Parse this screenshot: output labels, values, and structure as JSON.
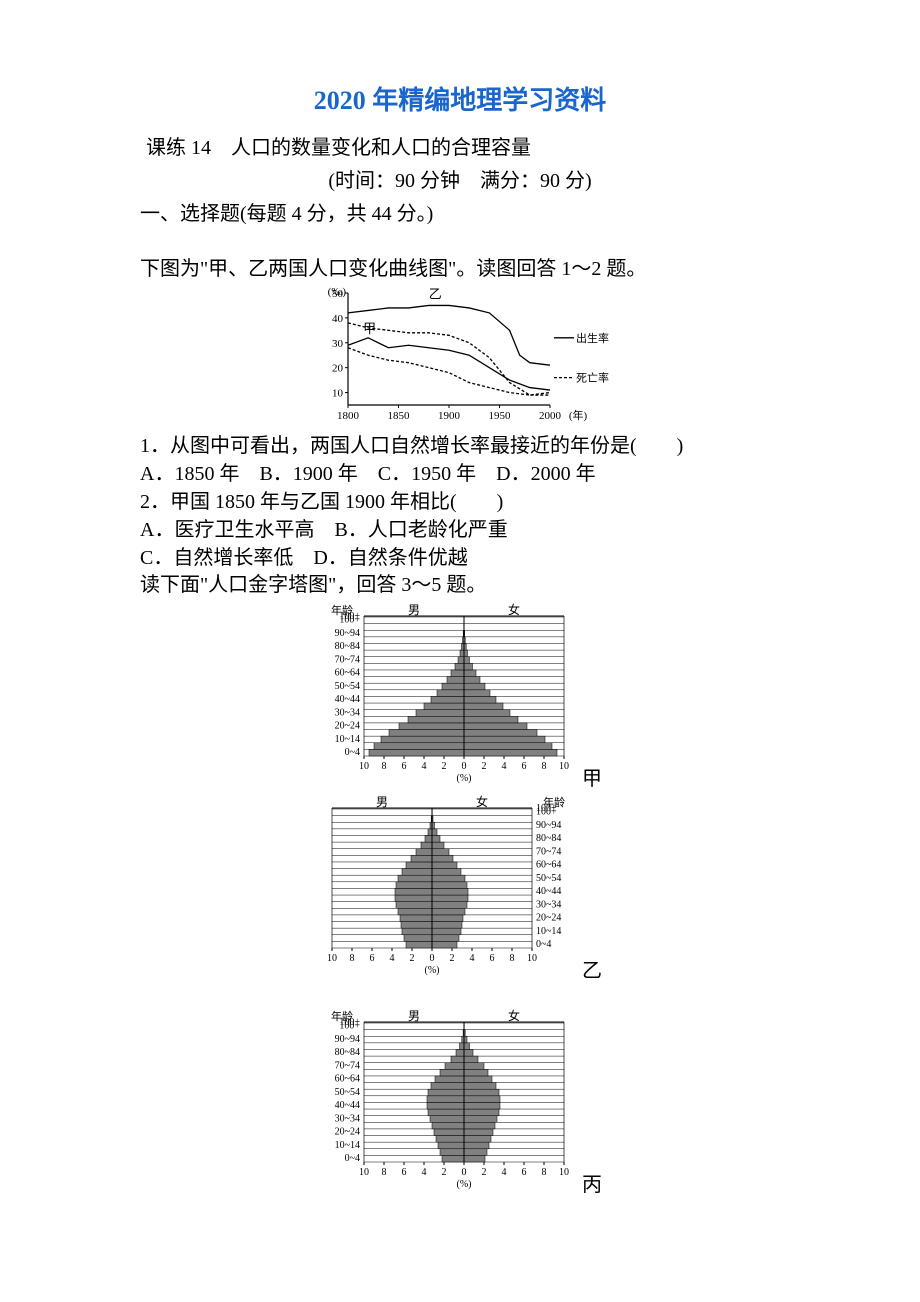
{
  "doc": {
    "title": "2020 年精编地理学习资料",
    "lesson": "课练 14　人口的数量变化和人口的合理容量",
    "time_score": "(时间：90 分钟　满分：90 分)",
    "section1": "一、选择题(每题 4 分，共 44 分。)",
    "intro1": "下图为\"甲、乙两国人口变化曲线图\"。读图回答 1～2 题。",
    "q1": "1．从图中可看出，两国人口自然增长率最接近的年份是(　　)",
    "q1_opts": "A．1850 年　B．1900 年　C．1950 年　D．2000 年",
    "q2": "2．甲国 1850 年与乙国 1900 年相比(　　)",
    "q2_optsA": "A．医疗卫生水平高　B．人口老龄化严重",
    "q2_optsB": "C．自然增长率低　D．自然条件优越",
    "intro2": "读下面\"人口金字塔图\"，回答 3～5 题。",
    "pyr_labels": {
      "jia": "甲",
      "yi": "乙",
      "bing": "丙"
    }
  },
  "chart1": {
    "y_unit": "(‰)",
    "y_ticks": [
      10,
      20,
      30,
      40,
      50
    ],
    "x_ticks": [
      1800,
      1850,
      1900,
      1950,
      2000
    ],
    "x_unit": "(年)",
    "legend_birth": "出生率",
    "legend_death": "死亡率",
    "label_jia": "甲",
    "label_yi": "乙",
    "line_color": "#000000",
    "bg": "#ffffff",
    "jia_birth": [
      [
        1800,
        29
      ],
      [
        1820,
        32
      ],
      [
        1840,
        28
      ],
      [
        1860,
        29
      ],
      [
        1880,
        28
      ],
      [
        1900,
        27
      ],
      [
        1920,
        25
      ],
      [
        1940,
        20
      ],
      [
        1960,
        15
      ],
      [
        1980,
        12
      ],
      [
        2000,
        11
      ]
    ],
    "jia_death": [
      [
        1800,
        28
      ],
      [
        1820,
        25
      ],
      [
        1840,
        23
      ],
      [
        1860,
        22
      ],
      [
        1880,
        20
      ],
      [
        1900,
        18
      ],
      [
        1920,
        14
      ],
      [
        1940,
        12
      ],
      [
        1960,
        10
      ],
      [
        1980,
        9
      ],
      [
        2000,
        10
      ]
    ],
    "yi_birth": [
      [
        1800,
        42
      ],
      [
        1820,
        43
      ],
      [
        1840,
        44
      ],
      [
        1860,
        44
      ],
      [
        1880,
        45
      ],
      [
        1900,
        45
      ],
      [
        1920,
        44
      ],
      [
        1940,
        42
      ],
      [
        1960,
        35
      ],
      [
        1970,
        25
      ],
      [
        1980,
        22
      ],
      [
        2000,
        21
      ]
    ],
    "yi_death": [
      [
        1800,
        38
      ],
      [
        1820,
        36
      ],
      [
        1840,
        35
      ],
      [
        1860,
        34
      ],
      [
        1880,
        34
      ],
      [
        1900,
        33
      ],
      [
        1920,
        30
      ],
      [
        1940,
        24
      ],
      [
        1960,
        14
      ],
      [
        1980,
        9
      ],
      [
        2000,
        9
      ]
    ]
  },
  "pyramid_common": {
    "x_ticks": [
      10,
      8,
      6,
      4,
      2,
      0,
      2,
      4,
      6,
      8,
      10
    ],
    "x_unit": "(%)",
    "age_labels": [
      "0~4",
      "10~14",
      "20~24",
      "30~34",
      "40~44",
      "50~54",
      "60~64",
      "70~74",
      "80~84",
      "90~94",
      "100+"
    ],
    "age_header": "年龄",
    "male": "男",
    "female": "女",
    "fill": "#808080",
    "line": "#000000"
  },
  "pyr_jia": {
    "male": [
      9.5,
      9.0,
      8.3,
      7.5,
      6.5,
      5.6,
      4.8,
      4.0,
      3.3,
      2.7,
      2.2,
      1.7,
      1.3,
      0.9,
      0.6,
      0.4,
      0.25,
      0.15,
      0.08,
      0.03,
      0.01
    ],
    "female": [
      9.3,
      8.8,
      8.1,
      7.3,
      6.3,
      5.4,
      4.6,
      3.9,
      3.2,
      2.6,
      2.1,
      1.6,
      1.2,
      0.85,
      0.55,
      0.35,
      0.22,
      0.13,
      0.07,
      0.025,
      0.01
    ]
  },
  "pyr_yi": {
    "male": [
      2.6,
      2.8,
      3.0,
      3.1,
      3.2,
      3.4,
      3.6,
      3.7,
      3.7,
      3.6,
      3.4,
      3.0,
      2.6,
      2.1,
      1.6,
      1.1,
      0.7,
      0.4,
      0.2,
      0.08,
      0.02
    ],
    "female": [
      2.5,
      2.7,
      2.9,
      3.0,
      3.1,
      3.3,
      3.5,
      3.6,
      3.6,
      3.5,
      3.3,
      2.9,
      2.5,
      2.1,
      1.7,
      1.2,
      0.8,
      0.5,
      0.25,
      0.1,
      0.03
    ]
  },
  "pyr_bing": {
    "male": [
      2.2,
      2.4,
      2.6,
      2.8,
      3.0,
      3.2,
      3.4,
      3.6,
      3.7,
      3.7,
      3.6,
      3.3,
      2.9,
      2.4,
      1.9,
      1.3,
      0.8,
      0.45,
      0.22,
      0.09,
      0.02
    ],
    "female": [
      2.1,
      2.3,
      2.5,
      2.7,
      2.9,
      3.1,
      3.3,
      3.5,
      3.6,
      3.6,
      3.5,
      3.2,
      2.8,
      2.4,
      2.0,
      1.4,
      0.9,
      0.55,
      0.3,
      0.12,
      0.03
    ]
  }
}
